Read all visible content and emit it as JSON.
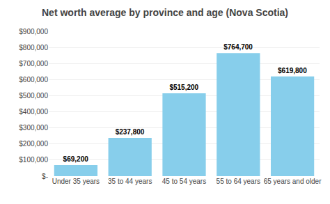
{
  "chart_data": {
    "type": "bar",
    "title": "Net worth average by province and age (Nova Scotia)",
    "categories": [
      "Under 35 years",
      "35 to 44 years",
      "45 to 54 years",
      "55 to 64 years",
      "65 years and older"
    ],
    "values": [
      69200,
      237800,
      515200,
      764700,
      619800
    ],
    "value_labels": [
      "$69,200",
      "$237,800",
      "$515,200",
      "$764,700",
      "$619,800"
    ],
    "data_labels": true,
    "color": "#87CEEB",
    "ylim": [
      0,
      900000
    ],
    "yticks": [
      {
        "value": 0,
        "label": "$-"
      },
      {
        "value": 100000,
        "label": "$100,000"
      },
      {
        "value": 200000,
        "label": "$200,000"
      },
      {
        "value": 300000,
        "label": "$300,000"
      },
      {
        "value": 400000,
        "label": "$400,000"
      },
      {
        "value": 500000,
        "label": "$500,000"
      },
      {
        "value": 600000,
        "label": "$600,000"
      },
      {
        "value": 700000,
        "label": "$700,000"
      },
      {
        "value": 800000,
        "label": "$800,000"
      },
      {
        "value": 900000,
        "label": "$900,000"
      }
    ],
    "grid": true
  }
}
